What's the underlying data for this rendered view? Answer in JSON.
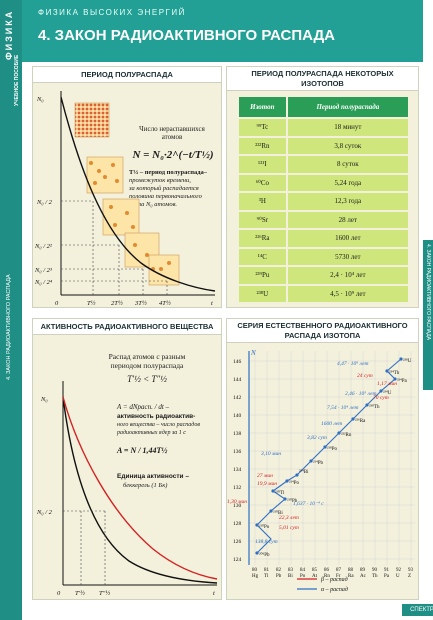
{
  "sidebar": {
    "left_top": "ФИЗИКА",
    "left_sub": "УЧЕБНОЕ ПОСОБИЕ",
    "left_mid": "4. ЗАКОН РАДИОАКТИВНОГО РАСПАДА",
    "right_mid": "4. ЗАКОН РАДИОАКТИВНОГО РАСПАДА"
  },
  "header": {
    "kicker": "ФИЗИКА ВЫСОКИХ ЭНЕРГИЙ",
    "title": "4. ЗАКОН РАДИОАКТИВНОГО РАСПАДА"
  },
  "half_life": {
    "heading": "ПЕРИОД ПОЛУРАСПАДА",
    "caption_line1": "Число нераспавшихся",
    "caption_line2": "атомов",
    "formula": "N = N₀·2^(−t/T½)",
    "def1": "T½ – период полураспада–",
    "def2": "промежуток времени,",
    "def3": "за который распадается",
    "def4": "половина первоначального",
    "def5": "числа N₀ атомов.",
    "y_labels": [
      "N₀",
      "N₀ / 2",
      "N₀ / 2²",
      "N₀ / 2³",
      "N₀ / 2⁴"
    ],
    "x_labels": [
      "0",
      "T½",
      "2T½",
      "3T½",
      "4T½",
      "t"
    ]
  },
  "isotopes": {
    "heading_line1": "ПЕРИОД ПОЛУРАСПАДА НЕКОТОРЫХ",
    "heading_line2": "ИЗОТОПОВ",
    "col_isotope": "Изотоп",
    "col_period": "Период полураспада",
    "rows": [
      {
        "isotope": "⁹⁹Tc",
        "period": "18 минут"
      },
      {
        "isotope": "²²²Rn",
        "period": "3,8 суток"
      },
      {
        "isotope": "¹³¹I",
        "period": "8 суток"
      },
      {
        "isotope": "⁶⁰Co",
        "period": "5,24 года"
      },
      {
        "isotope": "³H",
        "period": "12,3 года"
      },
      {
        "isotope": "⁹⁰Sr",
        "period": "28 лет"
      },
      {
        "isotope": "²²⁶Ra",
        "period": "1600 лет"
      },
      {
        "isotope": "¹⁴C",
        "period": "5730 лет"
      },
      {
        "isotope": "²³⁹Pu",
        "period": "2,4 · 10⁴ лет"
      },
      {
        "isotope": "²³⁸U",
        "period": "4,5 · 10⁹ лет"
      }
    ]
  },
  "activity": {
    "heading": "АКТИВНОСТЬ РАДИОАКТИВНОГО ВЕЩЕСТВА",
    "cap1": "Распад атомов с разным",
    "cap2": "периодом полураспада",
    "ineq": "T′½ < T″½",
    "def1": "A = dNрасп. / dt  –",
    "def2": "активность радиоактив-",
    "def3": "ного вещества – число распадов",
    "def4": "радиоактивных ядер за 1 с",
    "formula": "A = N / 1,44T½",
    "unit1": "Единица активности –",
    "unit2": "беккерель (1 Бк)",
    "y_labels": [
      "N₀",
      "N₀ / 2"
    ],
    "x_labels": [
      "0",
      "T′½",
      "T″½",
      "t"
    ]
  },
  "series": {
    "heading_line1": "СЕРИЯ ЕСТЕСТВЕННОГО РАДИОАКТИВНОГО",
    "heading_line2": "РАСПАДА ИЗОТОПА",
    "y_ticks": [
      "146",
      "144",
      "142",
      "140",
      "138",
      "136",
      "134",
      "132",
      "130",
      "128",
      "126",
      "124"
    ],
    "x_ticks": [
      "80",
      "81",
      "82",
      "83",
      "84",
      "85",
      "86",
      "87",
      "88",
      "89",
      "90",
      "91",
      "92",
      "93"
    ],
    "x_elements": [
      "Hg",
      "Tl",
      "Pb",
      "Bi",
      "Po",
      "At",
      "Rn",
      "Fr",
      "Ra",
      "Ac",
      "Th",
      "Pa",
      "U",
      "Z"
    ],
    "n_label": "N",
    "annotations": [
      "4,47 · 10⁹ лет",
      "24 сут",
      "1,17 мин",
      "2,46 · 10⁵ лет",
      "70 сут",
      "7,54 · 10⁴ лет",
      "1600 лет",
      "3,82 сут",
      "3,10 мин",
      "27 мин",
      "19,9 мин",
      "1,30 мин",
      "22,3 лет",
      "5,01 сут",
      "138,8 сут",
      "1,637 · 10⁻⁴ с"
    ],
    "nuclides": [
      "²³⁸U",
      "²³⁴Th",
      "²³⁴Pa",
      "²³⁴U",
      "²³⁰Th",
      "²²⁶Ra",
      "²²²Rn",
      "²¹⁸Po",
      "²¹⁴Pb",
      "²¹⁴Bi",
      "²¹⁴Po",
      "²¹⁰Tl",
      "²¹⁰Pb",
      "²¹⁰Bi",
      "²¹⁰Po",
      "²⁰⁶Pb"
    ],
    "legend_beta": "β – распад",
    "legend_alpha": "α – распад",
    "colors": {
      "alpha": "#2f6fc4",
      "beta": "#d42020",
      "grid": "#cfcfcf"
    }
  },
  "footer": {
    "publisher": "СПЕКТР"
  }
}
